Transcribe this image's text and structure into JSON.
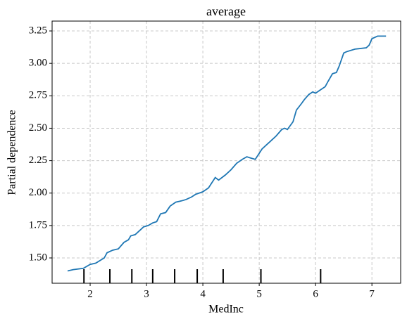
{
  "chart_data": {
    "type": "line",
    "title": "average",
    "xlabel": "MedInc",
    "ylabel": "Partial dependence",
    "x": [
      1.6,
      1.7,
      1.88,
      2.0,
      2.1,
      2.25,
      2.3,
      2.4,
      2.5,
      2.6,
      2.68,
      2.72,
      2.8,
      2.9,
      2.95,
      3.03,
      3.11,
      3.18,
      3.25,
      3.34,
      3.42,
      3.52,
      3.62,
      3.7,
      3.8,
      3.87,
      4.0,
      4.1,
      4.16,
      4.22,
      4.28,
      4.4,
      4.5,
      4.6,
      4.7,
      4.78,
      4.85,
      4.93,
      5.05,
      5.15,
      5.2,
      5.3,
      5.4,
      5.45,
      5.5,
      5.6,
      5.66,
      5.75,
      5.8,
      5.88,
      5.95,
      6.0,
      6.1,
      6.17,
      6.22,
      6.3,
      6.37,
      6.42,
      6.5,
      6.55,
      6.7,
      6.9,
      6.95,
      7.0,
      7.1,
      7.25
    ],
    "series": [
      {
        "color": "#1f77b4",
        "values": [
          1.4,
          1.41,
          1.42,
          1.45,
          1.46,
          1.5,
          1.54,
          1.56,
          1.57,
          1.62,
          1.64,
          1.67,
          1.68,
          1.72,
          1.74,
          1.75,
          1.77,
          1.78,
          1.84,
          1.85,
          1.9,
          1.93,
          1.94,
          1.95,
          1.97,
          1.99,
          2.01,
          2.04,
          2.08,
          2.12,
          2.1,
          2.14,
          2.18,
          2.23,
          2.26,
          2.28,
          2.27,
          2.26,
          2.34,
          2.38,
          2.4,
          2.44,
          2.49,
          2.5,
          2.49,
          2.55,
          2.64,
          2.69,
          2.72,
          2.76,
          2.78,
          2.77,
          2.8,
          2.82,
          2.86,
          2.92,
          2.93,
          2.98,
          3.08,
          3.09,
          3.11,
          3.12,
          3.14,
          3.19,
          3.21,
          3.21
        ]
      }
    ],
    "deciles": [
      1.89,
      2.35,
      2.74,
      3.11,
      3.5,
      3.9,
      4.36,
      5.03,
      6.09
    ],
    "xlim": [
      1.325,
      7.51
    ],
    "ylim": [
      1.305,
      3.326
    ],
    "xticks": [
      2,
      3,
      4,
      5,
      6,
      7
    ],
    "yticks": [
      {
        "value": 1.5,
        "label": "1.50"
      },
      {
        "value": 1.75,
        "label": "1.75"
      },
      {
        "value": 2,
        "label": "2.00"
      },
      {
        "value": 2.25,
        "label": "2.25"
      },
      {
        "value": 2.5,
        "label": "2.50"
      },
      {
        "value": 2.75,
        "label": "2.75"
      },
      {
        "value": 3,
        "label": "3.00"
      },
      {
        "value": 3.25,
        "label": "3.25"
      }
    ],
    "grid": true
  }
}
